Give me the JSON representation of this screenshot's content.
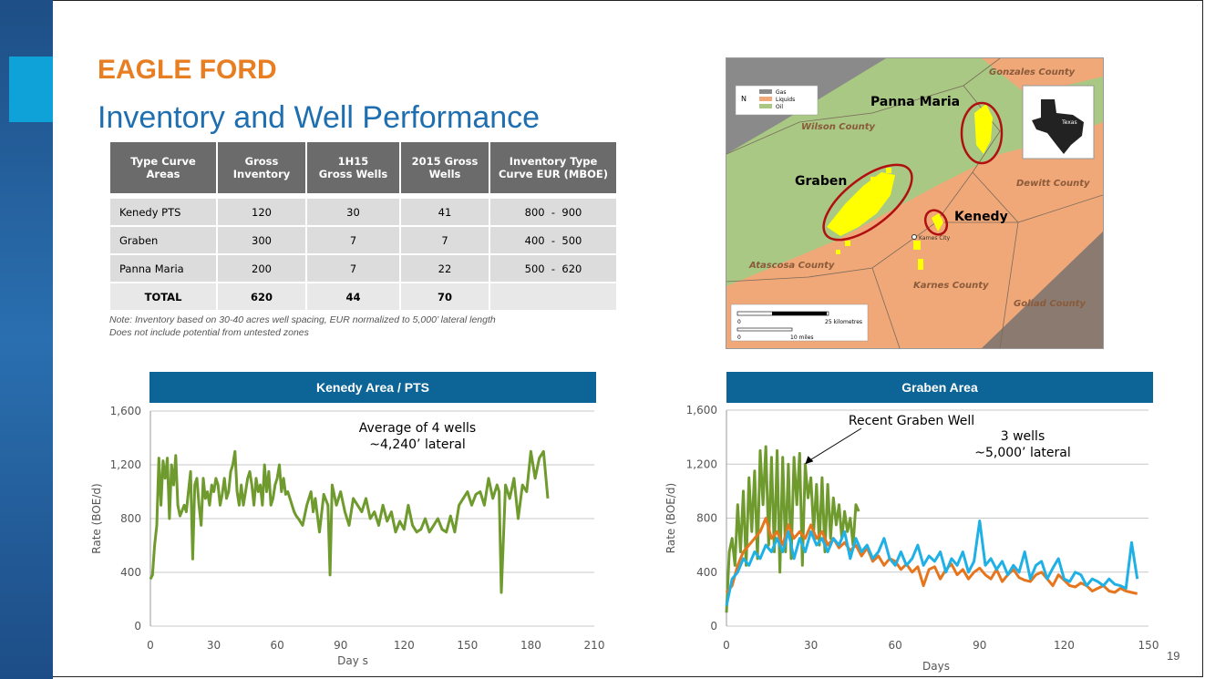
{
  "slide": {
    "title": "EAGLE FORD",
    "subtitle": "Inventory and Well Performance",
    "page_number": "19",
    "note_line1": "Note: Inventory based on 30-40 acres well spacing, EUR normalized to 5,000’ lateral length",
    "note_line2": "Does not include potential from untested zones"
  },
  "table": {
    "headers": [
      [
        "Type Curve",
        "Areas"
      ],
      [
        "Gross",
        "Inventory"
      ],
      [
        "1H15",
        "Gross Wells"
      ],
      [
        "2015 Gross",
        "Wells"
      ],
      [
        "Inventory Type",
        "Curve EUR (MBOE)"
      ]
    ],
    "rows": [
      [
        "Kenedy PTS",
        "120",
        "30",
        "41",
        "800  -  900"
      ],
      [
        "Graben",
        "300",
        "7",
        "7",
        "400  -  500"
      ],
      [
        "Panna Maria",
        "200",
        "7",
        "22",
        "500  -  620"
      ]
    ],
    "total": [
      "TOTAL",
      "620",
      "44",
      "70",
      ""
    ]
  },
  "map": {
    "counties": [
      "Gonzales County",
      "Wilson County",
      "Dewitt County",
      "Atascosa County",
      "Karnes County",
      "Goliad County"
    ],
    "areas": [
      "Panna Maria",
      "Graben",
      "Kenedy"
    ],
    "legend": [
      "Gas",
      "Liquids",
      "Oil"
    ],
    "inset_label": "Texas",
    "town_label": "Karnes City",
    "scale_km": "25 kilometres",
    "scale_mi": "10 miles",
    "scale_zero": "0",
    "north": "N",
    "colors": {
      "oil": "#a8c884",
      "liquids": "#f0a878",
      "gas": "#8a8a8a",
      "wells": "#ffff00",
      "outline": "#b01010"
    }
  },
  "chart_data": [
    {
      "type": "line",
      "title": "Kenedy Area / PTS",
      "xlabel": "Day s",
      "ylabel": "Rate (BOE/d)",
      "xlim": [
        0,
        210
      ],
      "ylim": [
        0,
        1600
      ],
      "xticks": [
        "0",
        "30",
        "60",
        "90",
        "120",
        "150",
        "180",
        "210"
      ],
      "yticks": [
        "0",
        "400",
        "800",
        "1,200",
        "1,600"
      ],
      "annotation": [
        "Average of 4 wells",
        "~4,240’ lateral"
      ],
      "series": [
        {
          "color": "#6f9a2e",
          "x": [
            0,
            1,
            2,
            3,
            4,
            5,
            6,
            7,
            8,
            9,
            10,
            11,
            12,
            13,
            14,
            15,
            16,
            17,
            18,
            19,
            20,
            21,
            22,
            23,
            24,
            25,
            26,
            27,
            28,
            29,
            30,
            31,
            32,
            33,
            34,
            35,
            36,
            37,
            38,
            39,
            40,
            41,
            42,
            43,
            44,
            45,
            46,
            47,
            48,
            49,
            50,
            51,
            52,
            53,
            54,
            55,
            56,
            57,
            58,
            59,
            60,
            61,
            62,
            63,
            64,
            65,
            66,
            67,
            68,
            69,
            70,
            72,
            74,
            76,
            77,
            78,
            80,
            82,
            84,
            85,
            86,
            88,
            90,
            92,
            94,
            96,
            98,
            100,
            102,
            104,
            106,
            108,
            110,
            112,
            114,
            116,
            118,
            120,
            122,
            124,
            126,
            128,
            130,
            132,
            134,
            136,
            138,
            140,
            142,
            144,
            146,
            148,
            150,
            152,
            154,
            156,
            158,
            160,
            162,
            164,
            165,
            166,
            168,
            170,
            172,
            174,
            176,
            178,
            180,
            182,
            184,
            186,
            188
          ],
          "y": [
            350,
            380,
            600,
            750,
            1250,
            900,
            1230,
            1100,
            1250,
            800,
            1200,
            1050,
            1270,
            900,
            820,
            860,
            900,
            850,
            1000,
            1150,
            500,
            1050,
            1100,
            900,
            750,
            1100,
            950,
            1000,
            900,
            1050,
            1000,
            1100,
            1050,
            900,
            980,
            1100,
            950,
            1000,
            1150,
            1200,
            1300,
            1000,
            900,
            1050,
            900,
            1000,
            1100,
            1150,
            1050,
            900,
            1100,
            1000,
            1050,
            900,
            1200,
            1000,
            1150,
            900,
            950,
            1050,
            1100,
            1200,
            1000,
            1100,
            980,
            1000,
            950,
            900,
            850,
            820,
            800,
            750,
            900,
            1000,
            850,
            950,
            700,
            980,
            900,
            380,
            1050,
            900,
            1000,
            850,
            750,
            950,
            900,
            850,
            950,
            800,
            850,
            750,
            900,
            780,
            850,
            700,
            780,
            720,
            900,
            750,
            700,
            720,
            800,
            700,
            750,
            800,
            720,
            700,
            820,
            700,
            900,
            950,
            1000,
            900,
            980,
            1000,
            900,
            1100,
            950,
            1050,
            1000,
            250,
            1050,
            950,
            1100,
            800,
            1050,
            1000,
            1300,
            1100,
            1250,
            1300,
            950
          ]
        }
      ]
    },
    {
      "type": "line",
      "title": "Graben Area",
      "xlabel": "Days",
      "ylabel": "Rate (BOE/d)",
      "xlim": [
        0,
        150
      ],
      "ylim": [
        0,
        1600
      ],
      "xticks": [
        "0",
        "30",
        "60",
        "90",
        "120",
        "150"
      ],
      "yticks": [
        "0",
        "400",
        "800",
        "1,200",
        "1,600"
      ],
      "annotation": [
        "3 wells",
        "~5,000’ lateral"
      ],
      "arrow_label": "Recent Graben Well",
      "series": [
        {
          "color": "#6f9a2e",
          "x": [
            0,
            1,
            2,
            3,
            4,
            5,
            6,
            7,
            8,
            9,
            10,
            11,
            12,
            13,
            14,
            15,
            16,
            17,
            18,
            19,
            20,
            21,
            22,
            23,
            24,
            25,
            26,
            27,
            28,
            29,
            30,
            31,
            32,
            33,
            34,
            35,
            36,
            37,
            38,
            39,
            40,
            41,
            42,
            43,
            44,
            45,
            46,
            47
          ],
          "y": [
            100,
            550,
            650,
            450,
            900,
            550,
            1000,
            450,
            1100,
            700,
            1150,
            500,
            1300,
            900,
            1330,
            600,
            1250,
            550,
            1300,
            400,
            1250,
            550,
            1200,
            500,
            1250,
            900,
            1280,
            450,
            1200,
            950,
            1100,
            700,
            1050,
            600,
            1100,
            550,
            1050,
            650,
            950,
            750,
            900,
            650,
            850,
            700,
            800,
            600,
            900,
            850
          ]
        },
        {
          "color": "#e6761e",
          "x": [
            0,
            2,
            4,
            6,
            8,
            10,
            12,
            14,
            16,
            18,
            20,
            22,
            24,
            26,
            28,
            30,
            32,
            34,
            36,
            38,
            40,
            42,
            44,
            46,
            48,
            50,
            52,
            54,
            56,
            58,
            60,
            62,
            64,
            66,
            68,
            70,
            72,
            74,
            76,
            78,
            80,
            82,
            84,
            86,
            88,
            90,
            92,
            94,
            96,
            98,
            100,
            102,
            104,
            106,
            108,
            110,
            112,
            114,
            116,
            118,
            120,
            122,
            124,
            126,
            128,
            130,
            132,
            134,
            136,
            138,
            140,
            142,
            144,
            146
          ],
          "y": [
            250,
            300,
            450,
            550,
            600,
            650,
            700,
            800,
            650,
            700,
            600,
            750,
            650,
            700,
            650,
            750,
            650,
            700,
            600,
            650,
            580,
            620,
            560,
            600,
            520,
            580,
            480,
            520,
            450,
            500,
            480,
            420,
            460,
            400,
            440,
            300,
            420,
            440,
            350,
            420,
            460,
            380,
            420,
            350,
            400,
            430,
            380,
            350,
            420,
            330,
            380,
            420,
            360,
            340,
            330,
            380,
            400,
            350,
            300,
            380,
            340,
            300,
            290,
            320,
            300,
            260,
            280,
            300,
            260,
            250,
            280,
            260,
            250,
            240
          ]
        },
        {
          "color": "#1fb0e6",
          "x": [
            0,
            2,
            4,
            6,
            8,
            10,
            12,
            14,
            16,
            18,
            20,
            22,
            24,
            26,
            28,
            30,
            32,
            34,
            36,
            38,
            40,
            42,
            44,
            46,
            48,
            50,
            52,
            54,
            56,
            58,
            60,
            62,
            64,
            66,
            68,
            70,
            72,
            74,
            76,
            78,
            80,
            82,
            84,
            86,
            88,
            90,
            92,
            94,
            96,
            98,
            100,
            102,
            104,
            106,
            108,
            110,
            112,
            114,
            116,
            118,
            120,
            122,
            124,
            126,
            128,
            130,
            132,
            134,
            136,
            138,
            140,
            142,
            144,
            146
          ],
          "y": [
            150,
            350,
            400,
            500,
            450,
            550,
            500,
            600,
            550,
            650,
            550,
            700,
            500,
            650,
            550,
            700,
            600,
            650,
            550,
            650,
            600,
            700,
            500,
            650,
            550,
            600,
            500,
            550,
            650,
            500,
            450,
            550,
            450,
            500,
            600,
            450,
            520,
            480,
            550,
            400,
            500,
            450,
            550,
            400,
            480,
            780,
            450,
            500,
            420,
            480,
            380,
            450,
            400,
            550,
            350,
            450,
            480,
            350,
            430,
            500,
            350,
            330,
            400,
            380,
            300,
            350,
            330,
            300,
            350,
            310,
            300,
            280,
            620,
            350
          ]
        }
      ]
    }
  ]
}
